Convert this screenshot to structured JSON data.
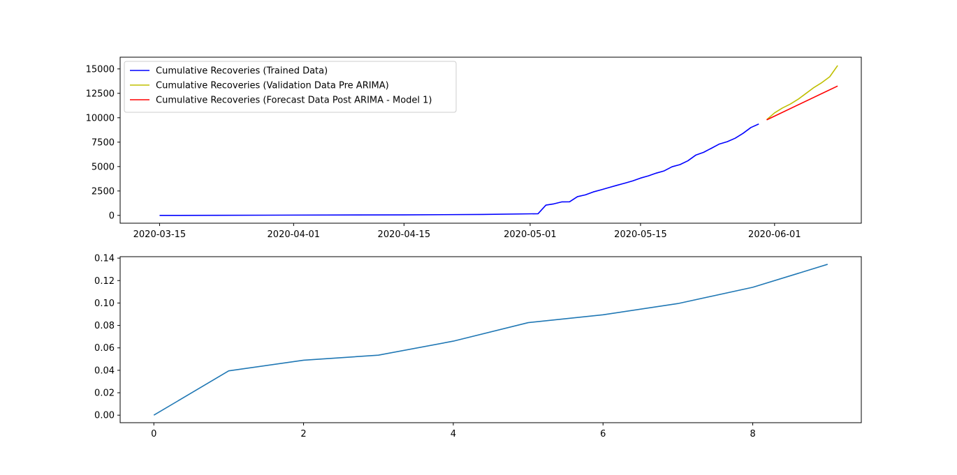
{
  "chart_data": [
    {
      "type": "line",
      "title": "",
      "xlabel": "",
      "ylabel": "",
      "x_type": "date",
      "xlim": [
        "2020-03-10",
        "2020-06-12"
      ],
      "ylim": [
        -800,
        16200
      ],
      "xticks": [
        {
          "value": "2020-03-15",
          "label": "2020-03-15"
        },
        {
          "value": "2020-04-01",
          "label": "2020-04-01"
        },
        {
          "value": "2020-04-15",
          "label": "2020-04-15"
        },
        {
          "value": "2020-05-01",
          "label": "2020-05-01"
        },
        {
          "value": "2020-05-15",
          "label": "2020-05-15"
        },
        {
          "value": "2020-06-01",
          "label": "2020-06-01"
        }
      ],
      "yticks": [
        {
          "value": 0,
          "label": "0"
        },
        {
          "value": 2500,
          "label": "2500"
        },
        {
          "value": 5000,
          "label": "5000"
        },
        {
          "value": 7500,
          "label": "7500"
        },
        {
          "value": 10000,
          "label": "10000"
        },
        {
          "value": 12500,
          "label": "12500"
        },
        {
          "value": 15000,
          "label": "15000"
        }
      ],
      "legend_position": "top-left",
      "series": [
        {
          "name": "Cumulative Recoveries (Trained Data)",
          "color": "#0000ff",
          "points": [
            {
              "x": "2020-03-15",
              "y": 0
            },
            {
              "x": "2020-03-22",
              "y": 5
            },
            {
              "x": "2020-04-01",
              "y": 30
            },
            {
              "x": "2020-04-15",
              "y": 50
            },
            {
              "x": "2020-04-25",
              "y": 100
            },
            {
              "x": "2020-05-02",
              "y": 170
            },
            {
              "x": "2020-05-03",
              "y": 1050
            },
            {
              "x": "2020-05-04",
              "y": 1180
            },
            {
              "x": "2020-05-05",
              "y": 1380
            },
            {
              "x": "2020-05-06",
              "y": 1390
            },
            {
              "x": "2020-05-07",
              "y": 1920
            },
            {
              "x": "2020-05-08",
              "y": 2100
            },
            {
              "x": "2020-05-09",
              "y": 2400
            },
            {
              "x": "2020-05-10",
              "y": 2620
            },
            {
              "x": "2020-05-11",
              "y": 2850
            },
            {
              "x": "2020-05-12",
              "y": 3080
            },
            {
              "x": "2020-05-13",
              "y": 3300
            },
            {
              "x": "2020-05-14",
              "y": 3530
            },
            {
              "x": "2020-05-15",
              "y": 3820
            },
            {
              "x": "2020-05-16",
              "y": 4050
            },
            {
              "x": "2020-05-17",
              "y": 4330
            },
            {
              "x": "2020-05-18",
              "y": 4560
            },
            {
              "x": "2020-05-19",
              "y": 4980
            },
            {
              "x": "2020-05-20",
              "y": 5200
            },
            {
              "x": "2020-05-21",
              "y": 5590
            },
            {
              "x": "2020-05-22",
              "y": 6170
            },
            {
              "x": "2020-05-23",
              "y": 6460
            },
            {
              "x": "2020-05-24",
              "y": 6880
            },
            {
              "x": "2020-05-25",
              "y": 7310
            },
            {
              "x": "2020-05-26",
              "y": 7550
            },
            {
              "x": "2020-05-27",
              "y": 7900
            },
            {
              "x": "2020-05-28",
              "y": 8400
            },
            {
              "x": "2020-05-29",
              "y": 9000
            },
            {
              "x": "2020-05-30",
              "y": 9360
            }
          ]
        },
        {
          "name": "Cumulative Recoveries (Validation Data Pre ARIMA)",
          "color": "#bfbf00",
          "points": [
            {
              "x": "2020-05-31",
              "y": 9800
            },
            {
              "x": "2020-06-01",
              "y": 10500
            },
            {
              "x": "2020-06-02",
              "y": 11000
            },
            {
              "x": "2020-06-03",
              "y": 11400
            },
            {
              "x": "2020-06-04",
              "y": 11900
            },
            {
              "x": "2020-06-05",
              "y": 12500
            },
            {
              "x": "2020-06-06",
              "y": 13100
            },
            {
              "x": "2020-06-07",
              "y": 13600
            },
            {
              "x": "2020-06-08",
              "y": 14200
            },
            {
              "x": "2020-06-09",
              "y": 15350
            }
          ]
        },
        {
          "name": "Cumulative Recoveries (Forecast Data Post ARIMA - Model 1)",
          "color": "#ff0000",
          "points": [
            {
              "x": "2020-05-31",
              "y": 9780
            },
            {
              "x": "2020-06-09",
              "y": 13250
            }
          ]
        }
      ]
    },
    {
      "type": "line",
      "title": "",
      "xlabel": "",
      "ylabel": "",
      "xlim": [
        -0.45,
        9.45
      ],
      "ylim": [
        -0.0067,
        0.1413
      ],
      "xticks": [
        {
          "value": 0,
          "label": "0"
        },
        {
          "value": 2,
          "label": "2"
        },
        {
          "value": 4,
          "label": "4"
        },
        {
          "value": 6,
          "label": "6"
        },
        {
          "value": 8,
          "label": "8"
        }
      ],
      "yticks": [
        {
          "value": 0.0,
          "label": "0.00"
        },
        {
          "value": 0.02,
          "label": "0.02"
        },
        {
          "value": 0.04,
          "label": "0.04"
        },
        {
          "value": 0.06,
          "label": "0.06"
        },
        {
          "value": 0.08,
          "label": "0.08"
        },
        {
          "value": 0.1,
          "label": "0.10"
        },
        {
          "value": 0.12,
          "label": "0.12"
        },
        {
          "value": 0.14,
          "label": "0.14"
        }
      ],
      "series": [
        {
          "color": "#1f77b4",
          "points": [
            {
              "x": 0,
              "y": 0.0
            },
            {
              "x": 1,
              "y": 0.0395
            },
            {
              "x": 2,
              "y": 0.049
            },
            {
              "x": 3,
              "y": 0.0535
            },
            {
              "x": 4,
              "y": 0.066
            },
            {
              "x": 5,
              "y": 0.0825
            },
            {
              "x": 6,
              "y": 0.0895
            },
            {
              "x": 7,
              "y": 0.0995
            },
            {
              "x": 8,
              "y": 0.114
            },
            {
              "x": 9,
              "y": 0.1345
            }
          ]
        }
      ]
    }
  ]
}
